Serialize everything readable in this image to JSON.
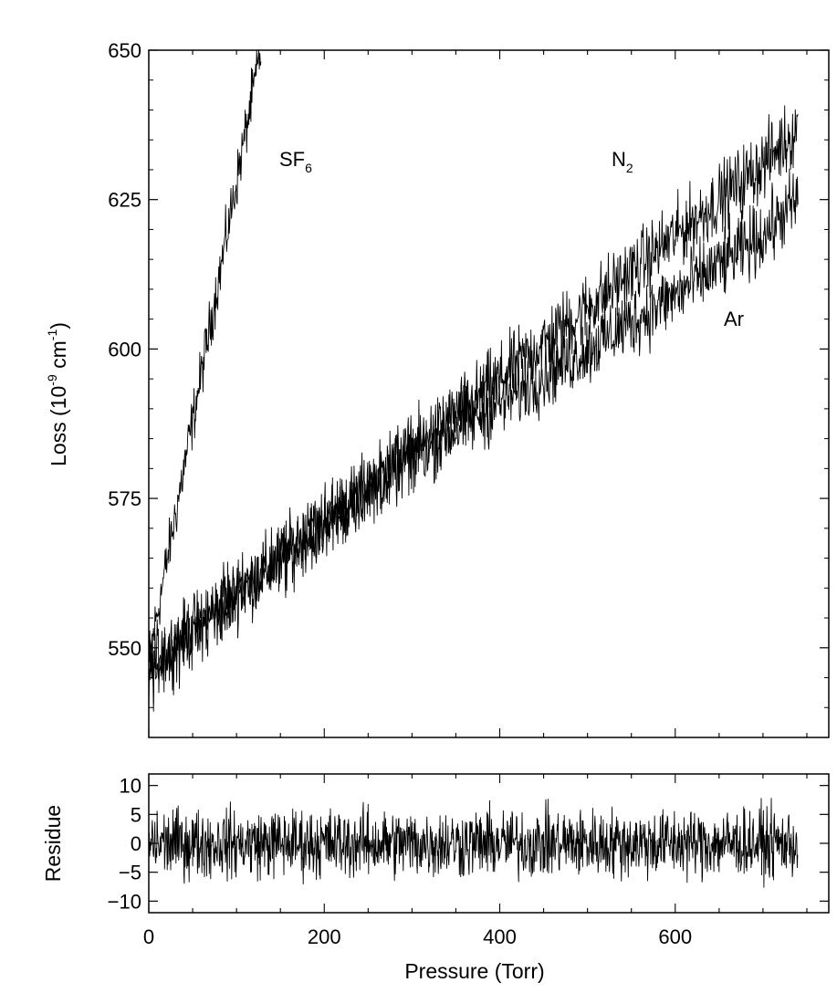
{
  "chart_data": [
    {
      "panel": "loss",
      "type": "line",
      "xlabel": "",
      "ylabel": {
        "prefix": "Loss (10",
        "sup": "-9",
        "mid": " cm",
        "sup2": "-1",
        "suffix": ")"
      },
      "xlim": [
        0,
        775
      ],
      "ylim": [
        535,
        650
      ],
      "xticks": [
        0,
        200,
        400,
        600
      ],
      "yticks": [
        550,
        575,
        600,
        625,
        650
      ],
      "series": [
        {
          "name": "SF6",
          "label_main": "SF",
          "label_sub": "6",
          "x": [
            0,
            25,
            50,
            75,
            100,
            125,
            128
          ],
          "y": [
            548,
            568,
            588,
            608,
            628,
            648,
            650
          ],
          "noise": 3.5
        },
        {
          "name": "N2",
          "label_main": "N",
          "label_sub": "2",
          "x": [
            0,
            100,
            200,
            300,
            400,
            500,
            600,
            700,
            740
          ],
          "y": [
            547,
            559,
            571,
            583,
            595,
            607,
            619,
            631,
            637
          ],
          "noise": 4.5
        },
        {
          "name": "Ar",
          "label_main": "Ar",
          "label_sub": "",
          "x": [
            0,
            100,
            200,
            300,
            400,
            500,
            600,
            700,
            740
          ],
          "y": [
            546,
            559,
            571,
            582,
            591,
            600,
            609,
            619,
            625
          ],
          "noise": 4.5
        }
      ]
    },
    {
      "panel": "residue",
      "type": "line",
      "xlabel": "Pressure (Torr)",
      "ylabel": "Residue",
      "xlim": [
        0,
        775
      ],
      "ylim": [
        -12,
        12
      ],
      "xticks": [
        0,
        200,
        400,
        600
      ],
      "xtick_labels": [
        "0",
        "200",
        "400",
        "600"
      ],
      "yticks": [
        10,
        5,
        0,
        -5,
        -10
      ],
      "ytick_labels": [
        "10",
        "5",
        "0",
        "−5",
        "−10"
      ],
      "series": [
        {
          "x_range": [
            0,
            740
          ],
          "baseline": 0,
          "amplitude": 4.5
        }
      ]
    }
  ]
}
